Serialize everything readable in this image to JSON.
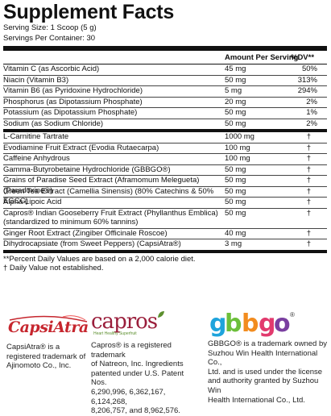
{
  "title": "Supplement Facts",
  "serving_size": "Serving Size: 1 Scoop (5 g)",
  "servings_per_container": "Servings Per Container: 30",
  "header": {
    "amount": "Amount Per Serving",
    "dv": "%DV**"
  },
  "vitamins": [
    {
      "name": "Vitamin C (as Ascorbic Acid)",
      "amount": "45 mg",
      "dv": "50%"
    },
    {
      "name": "Niacin (Vitamin B3)",
      "amount": "50 mg",
      "dv": "313%"
    },
    {
      "name": "Vitamin B6 (as Pyridoxine Hydrochloride)",
      "amount": "5 mg",
      "dv": "294%"
    },
    {
      "name": "Phosphorus (as Dipotassium Phosphate)",
      "amount": "20 mg",
      "dv": "2%"
    },
    {
      "name": "Potassium (as Dipotassium Phosphate)",
      "amount": "50 mg",
      "dv": "1%"
    },
    {
      "name": "Sodium (as Sodium Chloride)",
      "amount": "50 mg",
      "dv": "2%"
    }
  ],
  "ingredients": [
    {
      "name": "L-Carnitine Tartrate",
      "amount": "1000 mg",
      "dv": "†"
    },
    {
      "name": "Evodiamine Fruit Extract (Evodia Rutaecarpa)",
      "amount": "100 mg",
      "dv": "†"
    },
    {
      "name": "Caffeine Anhydrous",
      "amount": "100 mg",
      "dv": "†"
    },
    {
      "name": "Gamma-Butyrobetaine Hydrochloride (GBBGO®)",
      "amount": "50 mg",
      "dv": "†"
    },
    {
      "name": "Grains of Paradise Seed Extract (Aframomum Melegueta) (Paradoxine®)",
      "amount": "50 mg",
      "dv": "†"
    },
    {
      "name": "Green Tea Extract (Camellia Sinensis) (80% Catechins & 50% EGCG)",
      "amount": "50 mg",
      "dv": "†"
    },
    {
      "name": "Alpha Lipoic Acid",
      "amount": "50 mg",
      "dv": "†"
    },
    {
      "name": "Capros® Indian Gooseberry Fruit Extract (Phyllanthus Emblica)",
      "name2": "(standardized to minimum 60% tannins)",
      "amount": "50 mg",
      "dv": "†"
    },
    {
      "name": "Ginger Root Extract (Zingiber Officinale Roscoe)",
      "amount": "40 mg",
      "dv": "†"
    },
    {
      "name": "Dihydrocapsiate (from Sweet Peppers) (CapsiAtra®)",
      "amount": "3 mg",
      "dv": "†"
    }
  ],
  "footnotes": [
    "**Percent Daily Values are based on a 2,000 calorie diet.",
    "† Daily Value not established."
  ],
  "logos": {
    "capsiatra": {
      "mark": "CapsiAtra",
      "lines": [
        "CapsiAtra® is a",
        "registered trademark of",
        "Ajinomoto Co., Inc."
      ]
    },
    "capros": {
      "mark": "capros",
      "tagline": "Heart Healthy Superfruit",
      "lines": [
        "Capros® is a registered trademark",
        "of Natreon, Inc. Ingredients",
        "patented under U.S. Patent Nos.",
        "6,290,996, 6,362,167, 6,124,268,",
        "8,206,757, and 8,962,576."
      ]
    },
    "gbbgo": {
      "mark": "gbbgo",
      "lines": [
        "GBBGO® is a trademark owned by",
        "Suzhou Win Health International Co.,",
        "Ltd.  and is used under the license",
        "and authority granted by Suzhou Win",
        "Health International Co., Ltd."
      ]
    }
  },
  "colors": {
    "capsiatra_red": "#c6262e",
    "capros_maroon": "#9a1e3b",
    "capros_green": "#5c8f2e"
  }
}
